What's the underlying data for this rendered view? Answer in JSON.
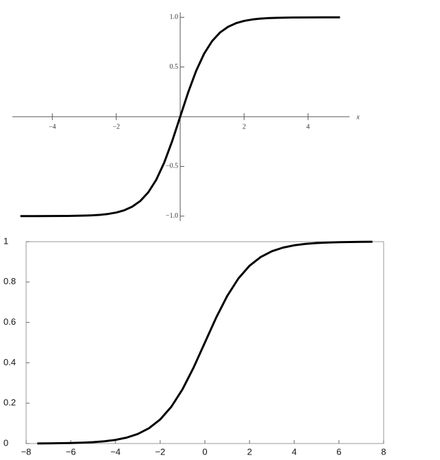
{
  "chart_data": [
    {
      "type": "line",
      "x_label": "x",
      "x": [
        -5,
        -4.5,
        -4,
        -3.5,
        -3,
        -2.75,
        -2.5,
        -2.25,
        -2,
        -1.75,
        -1.5,
        -1.25,
        -1,
        -0.75,
        -0.5,
        -0.25,
        0,
        0.25,
        0.5,
        0.75,
        1,
        1.25,
        1.5,
        1.75,
        2,
        2.25,
        2.5,
        2.75,
        3,
        3.5,
        4,
        4.5,
        5
      ],
      "series": [
        {
          "color": "#000000",
          "values": [
            -0.9999,
            -0.9998,
            -0.9993,
            -0.9982,
            -0.9951,
            -0.9919,
            -0.9866,
            -0.978,
            -0.964,
            -0.9414,
            -0.9051,
            -0.8483,
            -0.7616,
            -0.6351,
            -0.4621,
            -0.2449,
            0,
            0.2449,
            0.4621,
            0.6351,
            0.7616,
            0.8483,
            0.9051,
            0.9414,
            0.964,
            0.978,
            0.9866,
            0.9919,
            0.9951,
            0.9982,
            0.9993,
            0.9998,
            0.9999
          ]
        }
      ],
      "xlim": [
        -5.25,
        5.3
      ],
      "ylim": [
        -1.05,
        1.05
      ],
      "xticks": [
        {
          "value": -4,
          "label": "−4"
        },
        {
          "value": -2,
          "label": "−2"
        },
        2,
        4
      ],
      "yticks": [
        {
          "value": -1,
          "label": "−1.0"
        },
        {
          "value": -0.5,
          "label": "−0.5"
        },
        0.5,
        {
          "value": 1,
          "label": "1.0"
        }
      ]
    },
    {
      "type": "line",
      "x": [
        -7.5,
        -7,
        -6.5,
        -6,
        -5.5,
        -5,
        -4.5,
        -4,
        -3.5,
        -3,
        -2.5,
        -2,
        -1.5,
        -1,
        -0.5,
        0,
        0.5,
        1,
        1.5,
        2,
        2.5,
        3,
        3.5,
        4,
        4.5,
        5,
        5.5,
        6,
        6.5,
        7,
        7.5
      ],
      "series": [
        {
          "color": "#000000",
          "values": [
            0.00055,
            0.00091,
            0.0015,
            0.00247,
            0.00407,
            0.00669,
            0.011,
            0.018,
            0.0293,
            0.0474,
            0.0759,
            0.1192,
            0.1824,
            0.2689,
            0.3775,
            0.5,
            0.6225,
            0.7311,
            0.8176,
            0.8808,
            0.9241,
            0.9526,
            0.9707,
            0.982,
            0.989,
            0.9933,
            0.9959,
            0.9975,
            0.9985,
            0.9991,
            0.9995
          ]
        }
      ],
      "xlim": [
        -8,
        8
      ],
      "ylim": [
        0,
        1
      ],
      "xticks": [
        {
          "value": -8,
          "label": "−8"
        },
        {
          "value": -6,
          "label": "−6"
        },
        {
          "value": -4,
          "label": "−4"
        },
        {
          "value": -2,
          "label": "−2"
        },
        0,
        2,
        4,
        6,
        8
      ],
      "yticks": [
        0,
        0.2,
        0.4,
        0.6,
        0.8,
        1
      ]
    }
  ]
}
